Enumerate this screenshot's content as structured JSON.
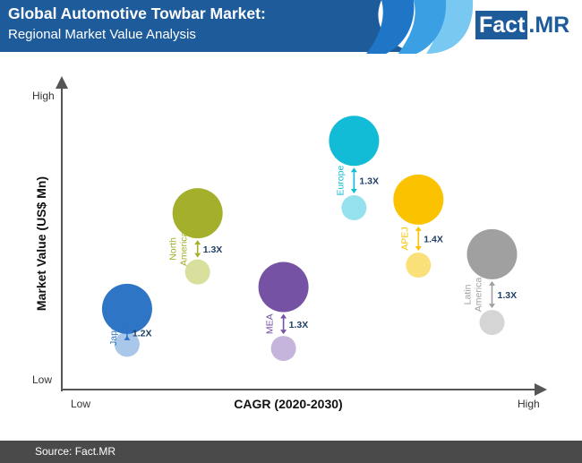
{
  "header": {
    "title": "Global Automotive Towbar Market:",
    "subtitle": "Regional Market Value Analysis",
    "logo_part1": "Fact",
    "logo_part2": ".MR",
    "colors": {
      "background": "#1e5b9a",
      "arc_dark": "#1f76c6",
      "arc_mid": "#3aa0e3",
      "arc_light": "#79c8f2"
    }
  },
  "chart_data": {
    "type": "bubble",
    "title": "",
    "xlabel": "CAGR (2020-2030)",
    "ylabel": "Market Value (US$ Mn)",
    "x_tick_labels": [
      "Low",
      "High"
    ],
    "y_tick_labels": [
      "Low",
      "High"
    ],
    "legend": "none",
    "grid": false,
    "series": [
      {
        "name": "Japan",
        "multiplier": "1.2X",
        "color": "#2e75c6",
        "light": "#a9c7e9",
        "x": 1.05,
        "y_current": 1.0,
        "y_future": 2.3
      },
      {
        "name": "North America",
        "multiplier": "1.3X",
        "color": "#a4b02c",
        "light": "#d9df9c",
        "x": 2.2,
        "y_current": 3.65,
        "y_future": 5.8
      },
      {
        "name": "MEA",
        "multiplier": "1.3X",
        "color": "#7552a3",
        "light": "#c5b5dd",
        "x": 3.6,
        "y_current": 0.85,
        "y_future": 3.1
      },
      {
        "name": "Europe",
        "multiplier": "1.3X",
        "color": "#12bcd6",
        "light": "#95e1ee",
        "x": 4.75,
        "y_current": 6.0,
        "y_future": 8.45
      },
      {
        "name": "APEJ",
        "multiplier": "1.4X",
        "color": "#fbc200",
        "light": "#fbe07a",
        "x": 5.8,
        "y_current": 3.9,
        "y_future": 6.3
      },
      {
        "name": "Latin America",
        "multiplier": "1.3X",
        "color": "#a0a0a0",
        "light": "#d5d5d5",
        "x": 7.0,
        "y_current": 1.8,
        "y_future": 4.3
      }
    ],
    "labels": {
      "Japan": [
        "Japan"
      ],
      "North America": [
        "North",
        "America"
      ],
      "MEA": [
        "MEA"
      ],
      "Europe": [
        "Europe"
      ],
      "APEJ": [
        "APEJ"
      ],
      "Latin America": [
        "Latin",
        "America"
      ]
    }
  },
  "footer": {
    "source": "Source: Fact.MR"
  }
}
